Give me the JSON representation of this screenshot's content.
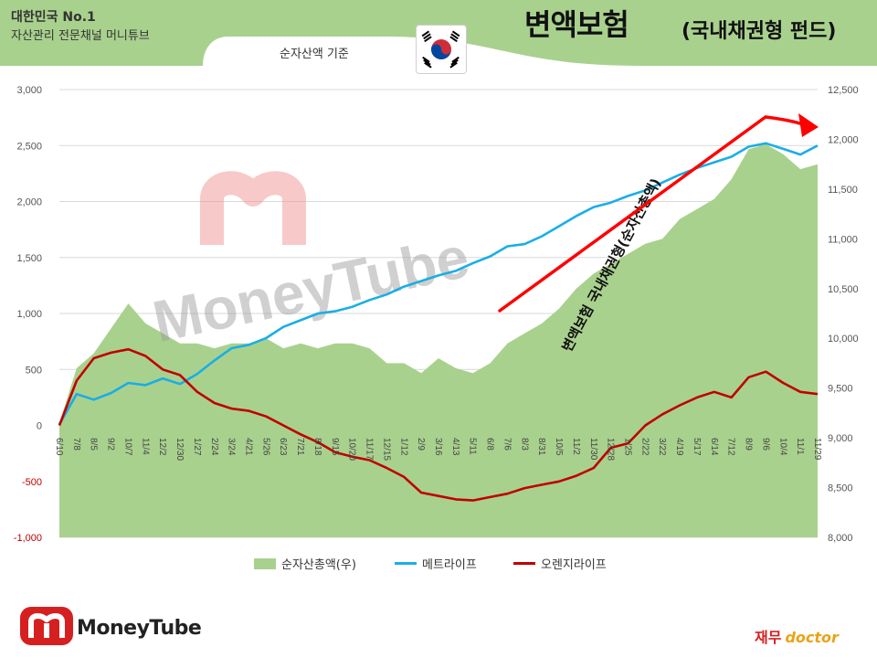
{
  "header": {
    "brand_line1": "대한민국 No.1",
    "brand_line2": "자산관리 전문채널 머니튜브",
    "title_main": "변액보험",
    "title_sub": "(국내채권형 펀드)",
    "subtitle": "순자산액 기준",
    "flag_icon": "korea-flag-icon"
  },
  "colors": {
    "banner_green": "#a9d18e",
    "area_green": "#a9d18e",
    "metlife_blue": "#1aaee5",
    "orange_red": "#c00000",
    "arrow_red": "#ff0000",
    "negative_tick": "#c00000"
  },
  "chart_data": {
    "type": "line",
    "title": "변액보험 (국내채권형 펀드)",
    "subtitle": "순자산액 기준",
    "xlabel": "",
    "ylabel": "",
    "ylim_left": [
      -1000,
      3000
    ],
    "ylim_right": [
      8000,
      12500
    ],
    "left_ticks": [
      "3,000",
      "2,500",
      "2,000",
      "1,500",
      "1,000",
      "500",
      "0",
      "-500",
      "-1,000"
    ],
    "right_ticks": [
      "12,500",
      "12,000",
      "11,500",
      "11,000",
      "10,500",
      "10,000",
      "9,500",
      "9,000",
      "8,500",
      "8,000"
    ],
    "x_tick_labels": [
      "6/10",
      "7/8",
      "8/5",
      "9/2",
      "10/7",
      "11/4",
      "12/2",
      "12/30",
      "1/27",
      "2/24",
      "3/24",
      "4/21",
      "5/26",
      "6/23",
      "7/21",
      "8/18",
      "9/15",
      "10/20",
      "11/17",
      "12/15",
      "1/12",
      "2/9",
      "3/16",
      "4/13",
      "5/11",
      "6/8",
      "7/6",
      "8/3",
      "8/31",
      "10/5",
      "11/2",
      "11/30",
      "12/28",
      "1/25",
      "2/22",
      "3/22",
      "4/19",
      "5/17",
      "6/14",
      "7/12",
      "8/9",
      "9/6",
      "10/4",
      "11/1",
      "11/29"
    ],
    "grid": true,
    "legend_position": "bottom",
    "series": [
      {
        "name": "순자산총액(우)",
        "axis": "right",
        "kind": "area",
        "values": [
          9150,
          9700,
          9850,
          10100,
          10350,
          10150,
          10050,
          9950,
          9950,
          9900,
          9950,
          9950,
          10000,
          9900,
          9950,
          9900,
          9950,
          9950,
          9900,
          9750,
          9750,
          9650,
          9800,
          9700,
          9650,
          9750,
          9950,
          10050,
          10150,
          10300,
          10500,
          10650,
          10750,
          10850,
          10950,
          11000,
          11200,
          11300,
          11400,
          11600,
          11900,
          11950,
          11850,
          11700,
          11750
        ]
      },
      {
        "name": "메트라이프",
        "axis": "left",
        "kind": "line",
        "values": [
          10,
          280,
          230,
          290,
          380,
          360,
          420,
          370,
          460,
          580,
          690,
          720,
          780,
          880,
          940,
          1000,
          1020,
          1060,
          1120,
          1170,
          1240,
          1290,
          1340,
          1380,
          1450,
          1510,
          1600,
          1620,
          1690,
          1780,
          1870,
          1950,
          1990,
          2050,
          2100,
          2170,
          2240,
          2300,
          2350,
          2400,
          2490,
          2520,
          2470,
          2420,
          2500
        ]
      },
      {
        "name": "오렌지라이프",
        "axis": "left",
        "kind": "line",
        "values": [
          0,
          400,
          600,
          650,
          680,
          620,
          500,
          450,
          300,
          200,
          150,
          130,
          80,
          0,
          -80,
          -150,
          -240,
          -280,
          -310,
          -380,
          -460,
          -600,
          -630,
          -660,
          -670,
          -640,
          -610,
          -560,
          -530,
          -500,
          -450,
          -380,
          -200,
          -160,
          0,
          100,
          180,
          250,
          300,
          250,
          430,
          480,
          380,
          300,
          280
        ]
      }
    ],
    "annotations": [
      {
        "text": "변액보험  국내채권형(순자산총액)",
        "kind": "rotated-label"
      },
      {
        "kind": "trend-arrow",
        "from_x": "6/8",
        "to_x": "11/29"
      }
    ]
  },
  "footer": {
    "logo_text": "MoneyTube",
    "doctor_korean": "재무",
    "doctor_english": "doctor"
  },
  "watermark": {
    "text": "MoneyTube"
  }
}
